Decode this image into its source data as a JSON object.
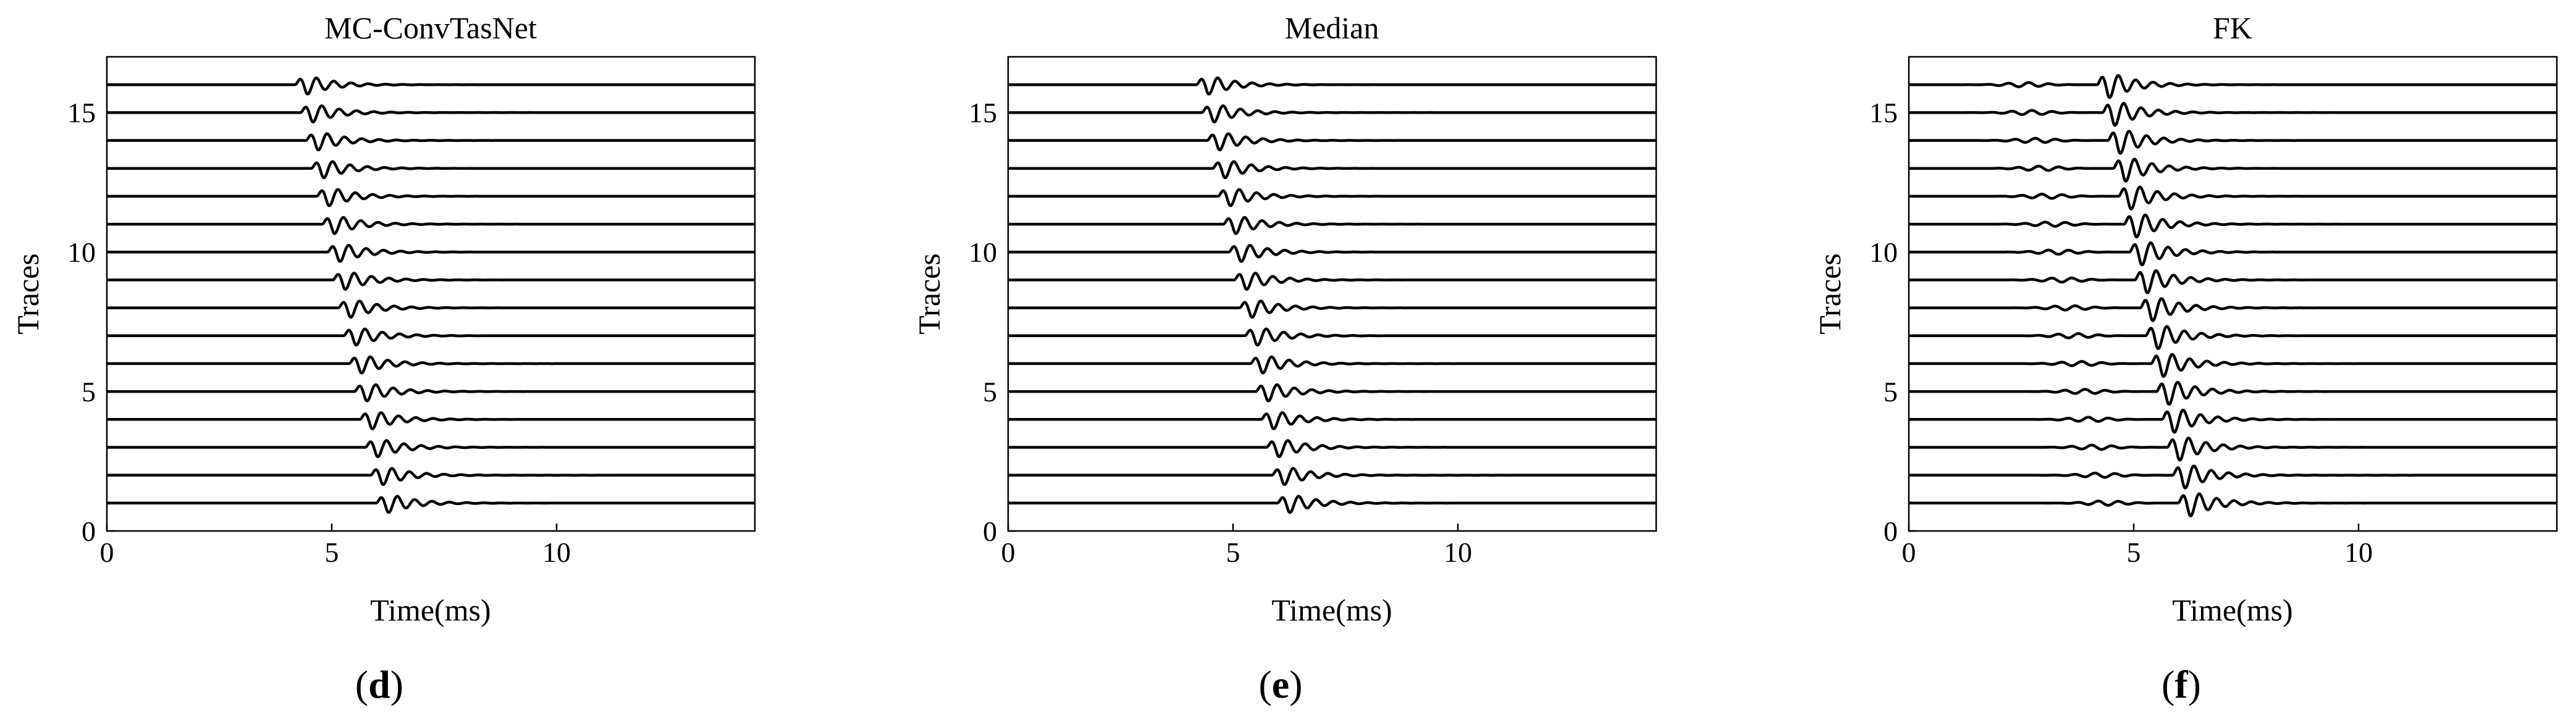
{
  "chart_data": [
    {
      "type": "line",
      "title": "MC-ConvTasNet",
      "panel_label": {
        "open": "(",
        "letter": "d",
        "close": ")"
      },
      "xlabel": "Time(ms)",
      "ylabel": "Traces",
      "xlim": [
        0,
        14.4
      ],
      "ylim": [
        0,
        17
      ],
      "xticks": [
        0,
        5,
        10
      ],
      "yticks": [
        0,
        5,
        10,
        15
      ],
      "grid": false,
      "traces": [
        1,
        2,
        3,
        4,
        5,
        6,
        7,
        8,
        9,
        10,
        11,
        12,
        13,
        14,
        15,
        16
      ],
      "wavelet_onset_ms": [
        5.98,
        5.86,
        5.74,
        5.62,
        5.5,
        5.38,
        5.26,
        5.14,
        5.02,
        4.9,
        4.78,
        4.66,
        4.54,
        4.42,
        4.3,
        4.18
      ],
      "wavelet_amplitude_traces": 0.55,
      "precursor_noise": false
    },
    {
      "type": "line",
      "title": "Median",
      "panel_label": {
        "open": "(",
        "letter": "e",
        "close": ")"
      },
      "xlabel": "Time(ms)",
      "ylabel": "Traces",
      "xlim": [
        0,
        14.4
      ],
      "ylim": [
        0,
        17
      ],
      "xticks": [
        0,
        5,
        10
      ],
      "yticks": [
        0,
        5,
        10,
        15
      ],
      "grid": false,
      "traces": [
        1,
        2,
        3,
        4,
        5,
        6,
        7,
        8,
        9,
        10,
        11,
        12,
        13,
        14,
        15,
        16
      ],
      "wavelet_onset_ms": [
        5.98,
        5.86,
        5.74,
        5.62,
        5.5,
        5.38,
        5.26,
        5.14,
        5.02,
        4.9,
        4.78,
        4.66,
        4.54,
        4.42,
        4.3,
        4.18
      ],
      "wavelet_amplitude_traces": 0.55,
      "precursor_noise": false
    },
    {
      "type": "line",
      "title": "FK",
      "panel_label": {
        "open": "(",
        "letter": "f",
        "close": ")"
      },
      "xlabel": "Time(ms)",
      "ylabel": "Traces",
      "xlim": [
        0,
        14.4
      ],
      "ylim": [
        0,
        17
      ],
      "xticks": [
        0,
        5,
        10
      ],
      "yticks": [
        0,
        5,
        10,
        15
      ],
      "grid": false,
      "traces": [
        1,
        2,
        3,
        4,
        5,
        6,
        7,
        8,
        9,
        10,
        11,
        12,
        13,
        14,
        15,
        16
      ],
      "wavelet_onset_ms": [
        5.98,
        5.86,
        5.74,
        5.62,
        5.5,
        5.38,
        5.26,
        5.14,
        5.02,
        4.9,
        4.78,
        4.66,
        4.54,
        4.42,
        4.3,
        4.18
      ],
      "wavelet_amplitude_traces": 0.75,
      "precursor_noise": true
    }
  ]
}
